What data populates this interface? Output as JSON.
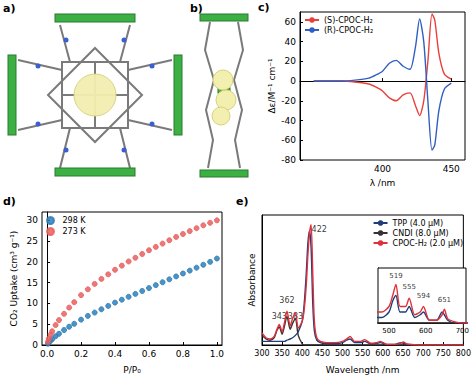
{
  "panels": [
    {
      "label": "a)"
    },
    {
      "label": "b)"
    }
  ],
  "chart_data": [
    {
      "panel": "c)",
      "type": "line",
      "x_label": "λ /nm",
      "y_label": "Δε/M⁻¹ cm⁻¹",
      "xlim": [
        340,
        460
      ],
      "xticks": [
        400,
        450
      ],
      "ylim": [
        -80,
        70
      ],
      "yticks": [
        -80,
        -60,
        -40,
        -20,
        0,
        20,
        40,
        60
      ],
      "legend": "upper left",
      "x": [
        350,
        360,
        370,
        380,
        390,
        395,
        400,
        405,
        410,
        415,
        420,
        424,
        427,
        430,
        433,
        436,
        438,
        441,
        445,
        450
      ],
      "series": [
        {
          "name": "(S)-CPOC-H₂",
          "color": "#e8413c",
          "values": [
            0,
            0,
            0,
            -1,
            -3,
            -6,
            -10,
            -17,
            -20,
            -14,
            -12,
            -25,
            -35,
            -20,
            20,
            68,
            62,
            28,
            7,
            2
          ]
        },
        {
          "name": "(R)-CPOC-H₂",
          "color": "#2f5fc4",
          "values": [
            0,
            0,
            0,
            1,
            3,
            6,
            10,
            18,
            21,
            15,
            12,
            35,
            63,
            40,
            -20,
            -70,
            -65,
            -30,
            -8,
            -2
          ]
        }
      ]
    },
    {
      "panel": "d)",
      "type": "scatter",
      "marker": "circle",
      "x_label": "P/P₀",
      "y_label": "CO₂ Uptake (cm³ g⁻¹)",
      "xlim": [
        -0.03,
        1.03
      ],
      "xticks": [
        {
          "value": 0,
          "label": "0.0"
        },
        0.2,
        0.4,
        0.6,
        0.8,
        {
          "value": 1,
          "label": "1.0"
        }
      ],
      "ylim": [
        0,
        32
      ],
      "yticks": [
        0,
        5,
        10,
        15,
        20,
        25,
        30
      ],
      "legend": "upper left",
      "x": [
        0.005,
        0.01,
        0.02,
        0.03,
        0.05,
        0.07,
        0.1,
        0.13,
        0.16,
        0.2,
        0.24,
        0.28,
        0.32,
        0.36,
        0.4,
        0.44,
        0.48,
        0.52,
        0.56,
        0.6,
        0.64,
        0.68,
        0.72,
        0.76,
        0.8,
        0.84,
        0.88,
        0.92,
        0.96,
        1.0
      ],
      "series": [
        {
          "name": "298 K",
          "color": "#2e7fb8",
          "values": [
            0.3,
            0.6,
            1.0,
            1.4,
            2.1,
            2.7,
            3.6,
            4.4,
            5.1,
            6.1,
            7.0,
            7.8,
            8.6,
            9.4,
            10.2,
            10.9,
            11.6,
            12.3,
            13.0,
            13.7,
            14.4,
            15.1,
            15.8,
            16.5,
            17.2,
            17.9,
            18.6,
            19.3,
            20.0,
            20.8
          ]
        },
        {
          "name": "273 K",
          "color": "#e8605f",
          "values": [
            0.8,
            1.5,
            2.5,
            3.3,
            4.8,
            6.0,
            7.5,
            9.0,
            10.3,
            12,
            13.4,
            14.7,
            15.9,
            17.0,
            18.1,
            19.1,
            20.1,
            21.0,
            21.9,
            22.8,
            23.6,
            24.4,
            25.2,
            26.0,
            26.7,
            27.4,
            28.1,
            28.8,
            29.4,
            30.0
          ]
        }
      ]
    },
    {
      "panel": "e)",
      "type": "line",
      "x_label": "Wavelength /nm",
      "y_label": "Absorbance",
      "tick_labels": "x",
      "xlim": [
        300,
        800
      ],
      "xticks": [
        300,
        350,
        400,
        450,
        500,
        550,
        600,
        650,
        700,
        750,
        800
      ],
      "ylim": [
        0,
        1.08
      ],
      "legend": "upper right",
      "annotations": [
        {
          "text": "343",
          "x": 343,
          "y": 0.24
        },
        {
          "text": "362",
          "x": 362,
          "y": 0.37
        },
        {
          "text": "383",
          "x": 383,
          "y": 0.24
        },
        {
          "text": "422",
          "x": 442,
          "y": 0.96
        }
      ],
      "x": [
        300,
        310,
        320,
        330,
        337,
        343,
        350,
        356,
        362,
        370,
        376,
        383,
        390,
        400,
        405,
        410,
        414,
        418,
        422,
        426,
        430,
        436,
        445,
        460,
        480,
        500,
        510,
        519,
        530,
        545,
        555,
        570,
        585,
        594,
        610,
        630,
        645,
        651,
        660,
        680,
        700,
        730,
        760,
        800
      ],
      "series": [
        {
          "name": "TPP (4.0 μM)",
          "color": "#1f3d7a",
          "values": [
            0.03,
            0.03,
            0.03,
            0.03,
            0.03,
            0.03,
            0.03,
            0.03,
            0.04,
            0.05,
            0.06,
            0.08,
            0.11,
            0.2,
            0.35,
            0.6,
            0.85,
            0.95,
            0.8,
            0.35,
            0.12,
            0.04,
            0.02,
            0.01,
            0.01,
            0.02,
            0.04,
            0.05,
            0.02,
            0.02,
            0.03,
            0.01,
            0.015,
            0.02,
            0.005,
            0.005,
            0.02,
            0.015,
            0.005,
            0,
            0,
            0,
            0,
            0
          ]
        },
        {
          "name": "CNDI (8.0 μM)",
          "color": "#333333",
          "values": [
            0.08,
            0.05,
            0.04,
            0.06,
            0.12,
            0.15,
            0.09,
            0.16,
            0.24,
            0.13,
            0.18,
            0.22,
            0.08,
            0.01,
            0,
            0,
            0,
            0,
            0,
            0,
            0,
            0,
            0,
            0,
            0,
            0,
            0,
            0,
            0,
            0,
            0,
            0,
            0,
            0,
            0,
            0,
            0,
            0,
            0,
            0,
            0,
            0,
            0,
            0
          ]
        },
        {
          "name": "CPOC-H₂ (2.0 μM)",
          "color": "#e0303a",
          "values": [
            0.1,
            0.06,
            0.05,
            0.07,
            0.13,
            0.17,
            0.11,
            0.19,
            0.28,
            0.16,
            0.22,
            0.27,
            0.14,
            0.2,
            0.3,
            0.5,
            0.75,
            0.93,
            1.0,
            0.6,
            0.2,
            0.06,
            0.03,
            0.02,
            0.02,
            0.03,
            0.05,
            0.07,
            0.03,
            0.03,
            0.045,
            0.015,
            0.02,
            0.03,
            0.005,
            0.005,
            0.015,
            0.025,
            0.008,
            0.002,
            0,
            0,
            0,
            0
          ]
        }
      ],
      "inset": {
        "xlim": [
          470,
          710
        ],
        "xticks": [
          500,
          600,
          700
        ],
        "ylim": [
          0,
          0.1
        ],
        "tick_labels": "x",
        "annotations": [
          {
            "text": "519",
            "x": 519,
            "y": 0.085
          },
          {
            "text": "555",
            "x": 555,
            "y": 0.065
          },
          {
            "text": "594",
            "x": 594,
            "y": 0.05
          },
          {
            "text": "651",
            "x": 651,
            "y": 0.042
          }
        ]
      }
    }
  ]
}
